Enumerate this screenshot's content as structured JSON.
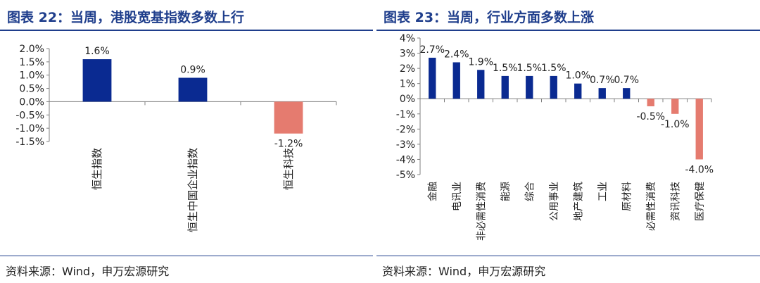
{
  "left": {
    "title": "图表 22：当周，港股宽基指数多数上行",
    "source": "资料来源：Wind，申万宏源研究"
  },
  "right": {
    "title": "图表 23：当周，行业方面多数上涨",
    "source": "资料来源：Wind，申万宏源研究"
  },
  "colors": {
    "positive": "#0a2a91",
    "negative": "#e57b6f",
    "title": "#1f3e8c"
  },
  "chart_data": [
    {
      "type": "bar",
      "title": "",
      "categories": [
        "恒生指数",
        "恒生中国企业指数",
        "恒生科技"
      ],
      "values": [
        1.6,
        0.9,
        -1.2
      ],
      "data_labels": [
        "1.6%",
        "0.9%",
        "-1.2%"
      ],
      "ylim": [
        -1.5,
        2.0
      ],
      "yticks": [
        2.0,
        1.5,
        1.0,
        0.5,
        0.0,
        -0.5,
        -1.0,
        -1.5
      ],
      "ytick_labels": [
        "2.0%",
        "1.5%",
        "1.0%",
        "0.5%",
        "0.0%",
        "-0.5%",
        "-1.0%",
        "-1.5%"
      ],
      "xlabel": "",
      "ylabel": "",
      "grid": false,
      "legend": "none"
    },
    {
      "type": "bar",
      "title": "",
      "categories": [
        "金融",
        "电讯业",
        "非必需性消费",
        "能源",
        "综合",
        "公用事业",
        "地产建筑",
        "工业",
        "原材料",
        "必需性消费",
        "资讯科技",
        "医疗保健"
      ],
      "values": [
        2.7,
        2.4,
        1.9,
        1.5,
        1.5,
        1.5,
        1.0,
        0.7,
        0.7,
        -0.5,
        -1.0,
        -4.0
      ],
      "data_labels": [
        "2.7%",
        "2.4%",
        "1.9%",
        "1.5%",
        "1.5%",
        "1.5%",
        "1.0%",
        "0.7%",
        "0.7%",
        "-0.5%",
        "-1.0%",
        "-4.0%"
      ],
      "ylim": [
        -5,
        4
      ],
      "yticks": [
        4,
        3,
        2,
        1,
        0,
        -1,
        -2,
        -3,
        -4,
        -5
      ],
      "ytick_labels": [
        "4%",
        "3%",
        "2%",
        "1%",
        "0%",
        "-1%",
        "-2%",
        "-3%",
        "-4%",
        "-5%"
      ],
      "xlabel": "",
      "ylabel": "",
      "grid": false,
      "legend": "none"
    }
  ]
}
